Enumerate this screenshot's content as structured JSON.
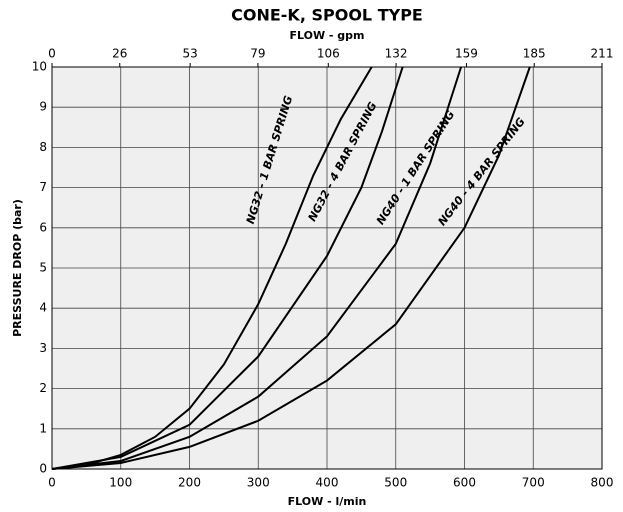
{
  "chart_data": {
    "type": "line",
    "title": "CONE-K, SPOOL TYPE",
    "x2label": "FLOW - gpm",
    "xlabel": "FLOW - l/min",
    "ylabel": "PRESSURE DROP (bar)",
    "xlim": [
      0,
      800
    ],
    "xticks": [
      0,
      100,
      200,
      300,
      400,
      500,
      600,
      700,
      800
    ],
    "x2lim": [
      0,
      211
    ],
    "x2ticks": [
      0,
      26,
      53,
      79,
      106,
      132,
      159,
      185,
      211
    ],
    "ylim": [
      0,
      10
    ],
    "yticks": [
      0,
      1,
      2,
      3,
      4,
      5,
      6,
      7,
      8,
      9,
      10
    ],
    "grid": true,
    "series": [
      {
        "name": "NG32 - 1 BAR SPRING",
        "color": "#000000",
        "x": [
          0,
          50,
          100,
          150,
          200,
          250,
          300,
          340,
          380,
          420,
          465
        ],
        "values": [
          0,
          0.1,
          0.35,
          0.8,
          1.5,
          2.6,
          4.1,
          5.6,
          7.3,
          8.7,
          10
        ]
      },
      {
        "name": "NG32 - 4 BAR SPRING",
        "color": "#000000",
        "x": [
          0,
          100,
          200,
          300,
          400,
          450,
          480,
          510
        ],
        "values": [
          0,
          0.3,
          1.1,
          2.8,
          5.3,
          7.0,
          8.4,
          10
        ]
      },
      {
        "name": "NG40 - 1 BAR SPRING",
        "color": "#000000",
        "x": [
          0,
          100,
          200,
          300,
          400,
          500,
          550,
          595
        ],
        "values": [
          0,
          0.2,
          0.8,
          1.8,
          3.3,
          5.6,
          7.6,
          10
        ]
      },
      {
        "name": "NG40 - 4 BAR SPRING",
        "color": "#000000",
        "x": [
          0,
          100,
          200,
          300,
          400,
          500,
          600,
          650,
          695
        ],
        "values": [
          0,
          0.15,
          0.55,
          1.2,
          2.2,
          3.6,
          6.0,
          7.8,
          10
        ]
      }
    ]
  }
}
